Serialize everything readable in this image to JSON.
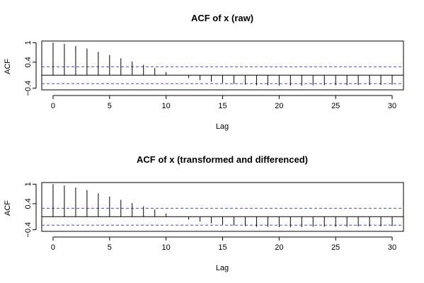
{
  "chart_data": [
    {
      "type": "bar",
      "title": "ACF of x (raw)",
      "xlabel": "Lag",
      "ylabel": "ACF",
      "x": [
        0,
        1,
        2,
        3,
        4,
        5,
        6,
        7,
        8,
        9,
        10,
        11,
        12,
        13,
        14,
        15,
        16,
        17,
        18,
        19,
        20,
        21,
        22,
        23,
        24,
        25,
        26,
        27,
        28,
        29,
        30
      ],
      "values": [
        1.0,
        0.96,
        0.9,
        0.82,
        0.72,
        0.62,
        0.52,
        0.42,
        0.32,
        0.22,
        0.1,
        0.0,
        -0.09,
        -0.15,
        -0.2,
        -0.24,
        -0.27,
        -0.29,
        -0.31,
        -0.31,
        -0.32,
        -0.32,
        -0.32,
        -0.31,
        -0.31,
        -0.31,
        -0.31,
        -0.3,
        -0.3,
        -0.3,
        -0.29
      ],
      "confidence_band": [
        0.26,
        -0.26
      ],
      "xlim": [
        -1,
        31
      ],
      "ylim": [
        -0.45,
        1.05
      ],
      "xticks": [
        0,
        5,
        10,
        15,
        20,
        25,
        30
      ],
      "yticks": [
        -0.4,
        0.4,
        1.0
      ],
      "grid": false,
      "colors": {
        "bars": "#000000",
        "zero_line": "#000000",
        "band": "#4444ff"
      }
    },
    {
      "type": "bar",
      "title": "ACF of x (transformed and differenced)",
      "xlabel": "Lag",
      "ylabel": "ACF",
      "x": [
        0,
        1,
        2,
        3,
        4,
        5,
        6,
        7,
        8,
        9,
        10,
        11,
        12,
        13,
        14,
        15,
        16,
        17,
        18,
        19,
        20,
        21,
        22,
        23,
        24,
        25,
        26,
        27,
        28,
        29,
        30
      ],
      "values": [
        1.0,
        0.96,
        0.9,
        0.82,
        0.72,
        0.62,
        0.52,
        0.42,
        0.32,
        0.22,
        0.1,
        0.0,
        -0.09,
        -0.15,
        -0.2,
        -0.24,
        -0.27,
        -0.29,
        -0.31,
        -0.31,
        -0.32,
        -0.32,
        -0.32,
        -0.31,
        -0.31,
        -0.31,
        -0.31,
        -0.3,
        -0.3,
        -0.3,
        -0.29
      ],
      "confidence_band": [
        0.26,
        -0.26
      ],
      "xlim": [
        -1,
        31
      ],
      "ylim": [
        -0.45,
        1.05
      ],
      "xticks": [
        0,
        5,
        10,
        15,
        20,
        25,
        30
      ],
      "yticks": [
        -0.4,
        0.4,
        1.0
      ],
      "grid": false,
      "colors": {
        "bars": "#000000",
        "zero_line": "#000000",
        "band": "#4444ff"
      }
    }
  ]
}
